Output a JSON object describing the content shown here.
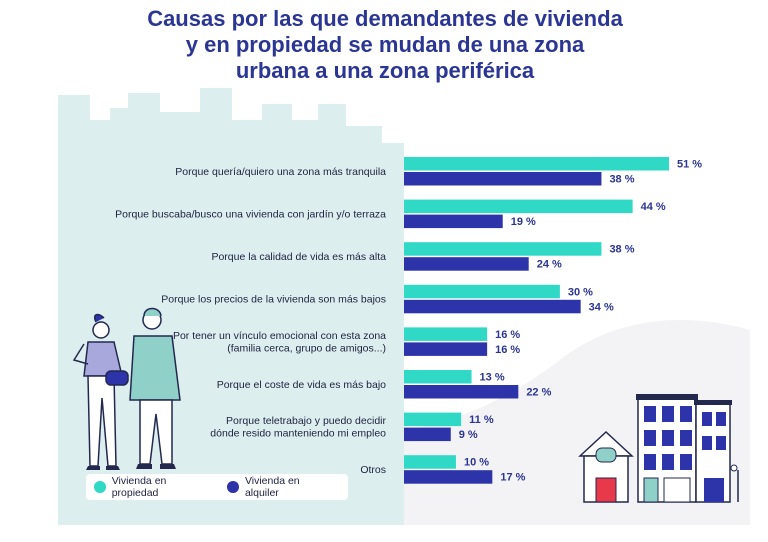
{
  "title_lines": [
    "Causas por las que demandantes de vivienda",
    "y en propiedad se mudan de una zona",
    "urbana a una zona periférica"
  ],
  "colors": {
    "title": "#2b3593",
    "propiedad": "#2fd9c6",
    "alquiler": "#2d33a8",
    "panel": "#dcefee",
    "outline": "#23284f"
  },
  "legend": [
    {
      "label": "Vivienda en propiedad",
      "color": "#2fd9c6"
    },
    {
      "label": "Vivienda en alquiler",
      "color": "#2d33a8"
    }
  ],
  "chart_data": {
    "type": "bar",
    "orientation": "horizontal",
    "value_suffix": " %",
    "categories": [
      [
        "Porque quería/quiero una zona más tranquila"
      ],
      [
        "Porque buscaba/busco una vivienda con jardín y/o terraza"
      ],
      [
        "Porque la calidad de vida es más alta"
      ],
      [
        "Porque los precios de la vivienda son más bajos"
      ],
      [
        "Por tener un vínculo emocional con esta zona",
        "(familia cerca, grupo de amigos...)"
      ],
      [
        "Porque el coste de vida es más bajo"
      ],
      [
        "Porque teletrabajo y puedo decidir",
        "dónde resido manteniendo mi empleo"
      ],
      [
        "Otros"
      ]
    ],
    "series": [
      {
        "name": "Vivienda en propiedad",
        "values": [
          51,
          44,
          38,
          30,
          16,
          13,
          11,
          10
        ]
      },
      {
        "name": "Vivienda en alquiler",
        "values": [
          38,
          19,
          24,
          34,
          16,
          22,
          9,
          17
        ]
      }
    ],
    "xlim": [
      0,
      51
    ],
    "grid": false,
    "legend_position": "bottom-left"
  }
}
